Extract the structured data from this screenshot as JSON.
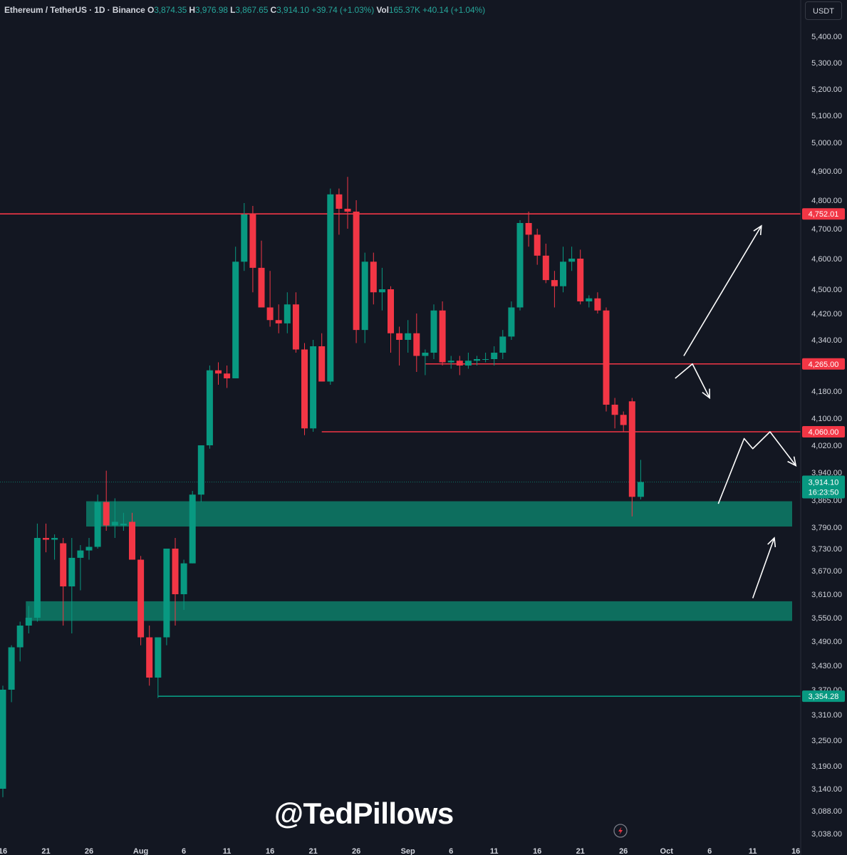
{
  "header": {
    "symbol": "Ethereum / TetherUS · 1D · Binance",
    "o_label": "O",
    "o_value": "3,874.35",
    "h_label": "H",
    "h_value": "3,976.98",
    "l_label": "L",
    "l_value": "3,867.65",
    "c_label": "C",
    "c_value": "3,914.10",
    "change": "+39.74 (+1.03%)",
    "vol_label": "Vol",
    "vol_value": "165.37K",
    "vol_change": "+40.14 (+1.04%)"
  },
  "currency": "USDT",
  "watermark": "@TedPillows",
  "colors": {
    "background": "#131722",
    "up": "#089981",
    "down": "#f23645",
    "zone": "#0d6e5e",
    "text": "#d1d4dc"
  },
  "chart_data": {
    "type": "candlestick",
    "title": "",
    "y_ticks": [
      {
        "label": "5,400.00",
        "value": 5400
      },
      {
        "label": "5,300.00",
        "value": 5300
      },
      {
        "label": "5,200.00",
        "value": 5200
      },
      {
        "label": "5,100.00",
        "value": 5100
      },
      {
        "label": "5,000.00",
        "value": 5000
      },
      {
        "label": "4,900.00",
        "value": 4900
      },
      {
        "label": "4,800.00",
        "value": 4800
      },
      {
        "label": "4,700.00",
        "value": 4700
      },
      {
        "label": "4,600.00",
        "value": 4600
      },
      {
        "label": "4,500.00",
        "value": 4500
      },
      {
        "label": "4,420.00",
        "value": 4420
      },
      {
        "label": "4,340.00",
        "value": 4340
      },
      {
        "label": "4,180.00",
        "value": 4180
      },
      {
        "label": "4,100.00",
        "value": 4100
      },
      {
        "label": "4,020.00",
        "value": 4020
      },
      {
        "label": "3,940.00",
        "value": 3940
      },
      {
        "label": "3,865.00",
        "value": 3865
      },
      {
        "label": "3,790.00",
        "value": 3790
      },
      {
        "label": "3,730.00",
        "value": 3730
      },
      {
        "label": "3,670.00",
        "value": 3670
      },
      {
        "label": "3,610.00",
        "value": 3610
      },
      {
        "label": "3,550.00",
        "value": 3550
      },
      {
        "label": "3,490.00",
        "value": 3490
      },
      {
        "label": "3,430.00",
        "value": 3430
      },
      {
        "label": "3,370.00",
        "value": 3370
      },
      {
        "label": "3,310.00",
        "value": 3310
      },
      {
        "label": "3,250.00",
        "value": 3250
      },
      {
        "label": "3,190.00",
        "value": 3190
      },
      {
        "label": "3,140.00",
        "value": 3140
      },
      {
        "label": "3,088.00",
        "value": 3088
      },
      {
        "label": "3,038.00",
        "value": 3038
      }
    ],
    "x_ticks": [
      {
        "label": "16",
        "day": 0
      },
      {
        "label": "21",
        "day": 5
      },
      {
        "label": "26",
        "day": 10
      },
      {
        "label": "Aug",
        "day": 16
      },
      {
        "label": "6",
        "day": 21
      },
      {
        "label": "11",
        "day": 26
      },
      {
        "label": "16",
        "day": 31
      },
      {
        "label": "21",
        "day": 36
      },
      {
        "label": "26",
        "day": 41
      },
      {
        "label": "Sep",
        "day": 47
      },
      {
        "label": "6",
        "day": 52
      },
      {
        "label": "11",
        "day": 57
      },
      {
        "label": "16",
        "day": 62
      },
      {
        "label": "21",
        "day": 67
      },
      {
        "label": "26",
        "day": 72
      },
      {
        "label": "Oct",
        "day": 77
      },
      {
        "label": "6",
        "day": 82
      },
      {
        "label": "11",
        "day": 87
      },
      {
        "label": "16",
        "day": 92
      }
    ],
    "candles": [
      {
        "o": 3140,
        "h": 3380,
        "l": 3120,
        "c": 3370
      },
      {
        "o": 3370,
        "h": 3480,
        "l": 3340,
        "c": 3475
      },
      {
        "o": 3475,
        "h": 3540,
        "l": 3440,
        "c": 3530
      },
      {
        "o": 3530,
        "h": 3580,
        "l": 3510,
        "c": 3550
      },
      {
        "o": 3550,
        "h": 3800,
        "l": 3540,
        "c": 3760
      },
      {
        "o": 3760,
        "h": 3800,
        "l": 3720,
        "c": 3755
      },
      {
        "o": 3755,
        "h": 3770,
        "l": 3700,
        "c": 3760
      },
      {
        "o": 3745,
        "h": 3760,
        "l": 3530,
        "c": 3630
      },
      {
        "o": 3630,
        "h": 3760,
        "l": 3510,
        "c": 3705
      },
      {
        "o": 3705,
        "h": 3740,
        "l": 3620,
        "c": 3725
      },
      {
        "o": 3725,
        "h": 3760,
        "l": 3700,
        "c": 3735
      },
      {
        "o": 3735,
        "h": 3880,
        "l": 3730,
        "c": 3860
      },
      {
        "o": 3860,
        "h": 3945,
        "l": 3780,
        "c": 3795
      },
      {
        "o": 3795,
        "h": 3870,
        "l": 3760,
        "c": 3805
      },
      {
        "o": 3795,
        "h": 3830,
        "l": 3780,
        "c": 3800
      },
      {
        "o": 3805,
        "h": 3830,
        "l": 3700,
        "c": 3700
      },
      {
        "o": 3700,
        "h": 3710,
        "l": 3480,
        "c": 3500
      },
      {
        "o": 3500,
        "h": 3530,
        "l": 3380,
        "c": 3400
      },
      {
        "o": 3400,
        "h": 3500,
        "l": 3350,
        "c": 3500
      },
      {
        "o": 3500,
        "h": 3730,
        "l": 3480,
        "c": 3730
      },
      {
        "o": 3730,
        "h": 3760,
        "l": 3530,
        "c": 3610
      },
      {
        "o": 3610,
        "h": 3700,
        "l": 3570,
        "c": 3690
      },
      {
        "o": 3690,
        "h": 3890,
        "l": 3690,
        "c": 3880
      },
      {
        "o": 3880,
        "h": 4020,
        "l": 3860,
        "c": 4020
      },
      {
        "o": 4020,
        "h": 4260,
        "l": 4010,
        "c": 4245
      },
      {
        "o": 4245,
        "h": 4270,
        "l": 4200,
        "c": 4235
      },
      {
        "o": 4235,
        "h": 4260,
        "l": 4190,
        "c": 4220
      },
      {
        "o": 4220,
        "h": 4640,
        "l": 4220,
        "c": 4590
      },
      {
        "o": 4590,
        "h": 4790,
        "l": 4560,
        "c": 4750
      },
      {
        "o": 4750,
        "h": 4780,
        "l": 4490,
        "c": 4570
      },
      {
        "o": 4570,
        "h": 4660,
        "l": 4440,
        "c": 4440
      },
      {
        "o": 4440,
        "h": 4560,
        "l": 4380,
        "c": 4400
      },
      {
        "o": 4400,
        "h": 4450,
        "l": 4360,
        "c": 4390
      },
      {
        "o": 4390,
        "h": 4490,
        "l": 4360,
        "c": 4450
      },
      {
        "o": 4450,
        "h": 4490,
        "l": 4300,
        "c": 4310
      },
      {
        "o": 4310,
        "h": 4330,
        "l": 4050,
        "c": 4070
      },
      {
        "o": 4070,
        "h": 4340,
        "l": 4060,
        "c": 4320
      },
      {
        "o": 4320,
        "h": 4360,
        "l": 4210,
        "c": 4210
      },
      {
        "o": 4210,
        "h": 4840,
        "l": 4200,
        "c": 4820
      },
      {
        "o": 4820,
        "h": 4840,
        "l": 4680,
        "c": 4770
      },
      {
        "o": 4770,
        "h": 4880,
        "l": 4700,
        "c": 4760
      },
      {
        "o": 4760,
        "h": 4800,
        "l": 4330,
        "c": 4370
      },
      {
        "o": 4370,
        "h": 4620,
        "l": 4330,
        "c": 4590
      },
      {
        "o": 4590,
        "h": 4620,
        "l": 4450,
        "c": 4490
      },
      {
        "o": 4490,
        "h": 4570,
        "l": 4430,
        "c": 4500
      },
      {
        "o": 4500,
        "h": 4510,
        "l": 4300,
        "c": 4360
      },
      {
        "o": 4360,
        "h": 4380,
        "l": 4260,
        "c": 4340
      },
      {
        "o": 4340,
        "h": 4400,
        "l": 4300,
        "c": 4360
      },
      {
        "o": 4360,
        "h": 4420,
        "l": 4240,
        "c": 4290
      },
      {
        "o": 4290,
        "h": 4310,
        "l": 4230,
        "c": 4300
      },
      {
        "o": 4300,
        "h": 4450,
        "l": 4280,
        "c": 4430
      },
      {
        "o": 4430,
        "h": 4460,
        "l": 4260,
        "c": 4270
      },
      {
        "o": 4270,
        "h": 4290,
        "l": 4250,
        "c": 4275
      },
      {
        "o": 4275,
        "h": 4290,
        "l": 4230,
        "c": 4260
      },
      {
        "o": 4260,
        "h": 4300,
        "l": 4250,
        "c": 4275
      },
      {
        "o": 4275,
        "h": 4290,
        "l": 4260,
        "c": 4280
      },
      {
        "o": 4280,
        "h": 4300,
        "l": 4270,
        "c": 4280
      },
      {
        "o": 4280,
        "h": 4320,
        "l": 4260,
        "c": 4300
      },
      {
        "o": 4300,
        "h": 4370,
        "l": 4280,
        "c": 4350
      },
      {
        "o": 4350,
        "h": 4460,
        "l": 4340,
        "c": 4440
      },
      {
        "o": 4440,
        "h": 4730,
        "l": 4430,
        "c": 4720
      },
      {
        "o": 4720,
        "h": 4760,
        "l": 4640,
        "c": 4680
      },
      {
        "o": 4680,
        "h": 4700,
        "l": 4580,
        "c": 4610
      },
      {
        "o": 4610,
        "h": 4650,
        "l": 4520,
        "c": 4530
      },
      {
        "o": 4530,
        "h": 4560,
        "l": 4440,
        "c": 4510
      },
      {
        "o": 4510,
        "h": 4640,
        "l": 4490,
        "c": 4590
      },
      {
        "o": 4590,
        "h": 4640,
        "l": 4560,
        "c": 4600
      },
      {
        "o": 4600,
        "h": 4630,
        "l": 4450,
        "c": 4460
      },
      {
        "o": 4460,
        "h": 4480,
        "l": 4440,
        "c": 4470
      },
      {
        "o": 4470,
        "h": 4490,
        "l": 4420,
        "c": 4430
      },
      {
        "o": 4430,
        "h": 4440,
        "l": 4120,
        "c": 4140
      },
      {
        "o": 4140,
        "h": 4160,
        "l": 4070,
        "c": 4110
      },
      {
        "o": 4110,
        "h": 4120,
        "l": 4060,
        "c": 4080
      },
      {
        "o": 4150,
        "h": 4160,
        "l": 3820,
        "c": 3874
      },
      {
        "o": 3874,
        "h": 3977,
        "l": 3867,
        "c": 3914
      }
    ],
    "horizontal_levels": [
      {
        "price": 4752.01,
        "label": "4,752.01",
        "color": "#f23645",
        "start_day": -1
      },
      {
        "price": 4265.0,
        "label": "4,265.00",
        "color": "#f23645",
        "start_day": 49
      },
      {
        "price": 4060.0,
        "label": "4,060.00",
        "color": "#f23645",
        "start_day": 37
      },
      {
        "price": 3354.28,
        "label": "3,354.28",
        "color": "#089981",
        "start_day": 18
      }
    ],
    "zones": [
      {
        "top": 3862,
        "bottom": 3792,
        "start_day": 10
      },
      {
        "top": 3592,
        "bottom": 3542,
        "start_day": 3
      }
    ],
    "last_price": {
      "label": "3,914.10",
      "countdown": "16:23:50"
    },
    "projection_arrows": [
      [
        [
          78,
          4220
        ],
        [
          80,
          4265
        ],
        [
          82,
          4160
        ]
      ],
      [
        [
          79,
          4290
        ],
        [
          88,
          4710
        ]
      ],
      [
        [
          83,
          3855
        ],
        [
          86,
          4040
        ],
        [
          87,
          4010
        ],
        [
          89,
          4060
        ],
        [
          92,
          3960
        ]
      ],
      [
        [
          87,
          3600
        ],
        [
          89.5,
          3760
        ]
      ]
    ]
  }
}
